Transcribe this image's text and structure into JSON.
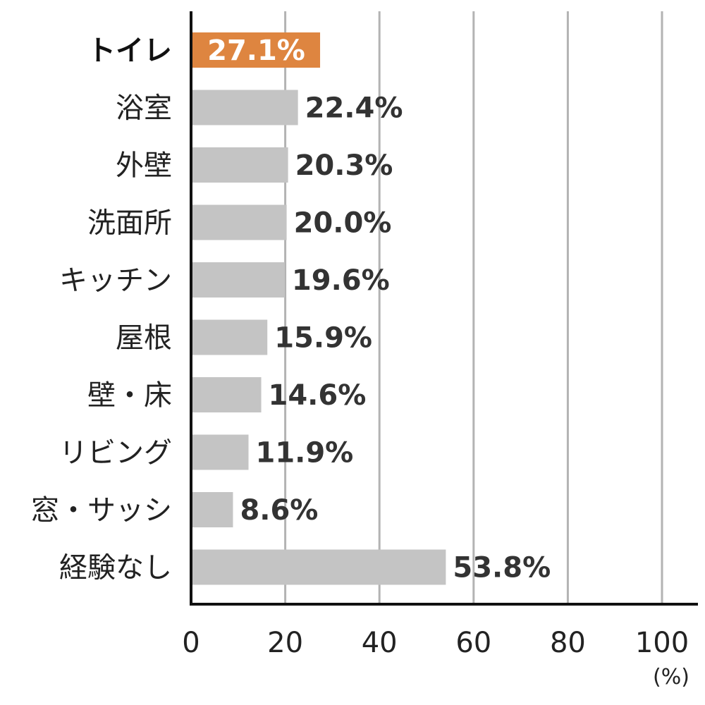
{
  "chart_data": {
    "type": "bar",
    "orientation": "horizontal",
    "categories": [
      "トイレ",
      "浴室",
      "外壁",
      "洗面所",
      "キッチン",
      "屋根",
      "壁・床",
      "リビング",
      "窓・サッシ",
      "経験なし"
    ],
    "values": [
      27.1,
      22.4,
      20.3,
      20.0,
      19.6,
      15.9,
      14.6,
      11.9,
      8.6,
      53.8
    ],
    "value_labels": [
      "27.1%",
      "22.4%",
      "20.3%",
      "20.0%",
      "19.6%",
      "15.9%",
      "14.6%",
      "11.9%",
      "8.6%",
      "53.8%"
    ],
    "highlight_index": 0,
    "xlim": [
      0,
      100
    ],
    "xticks": [
      0,
      20,
      40,
      60,
      80,
      100
    ],
    "x_unit": "(%)",
    "grid": "vertical",
    "colors": {
      "highlight": "#DE8540",
      "bar": "#C4C4C4",
      "grid": "#B3B3B3",
      "axis": "#111111"
    }
  }
}
